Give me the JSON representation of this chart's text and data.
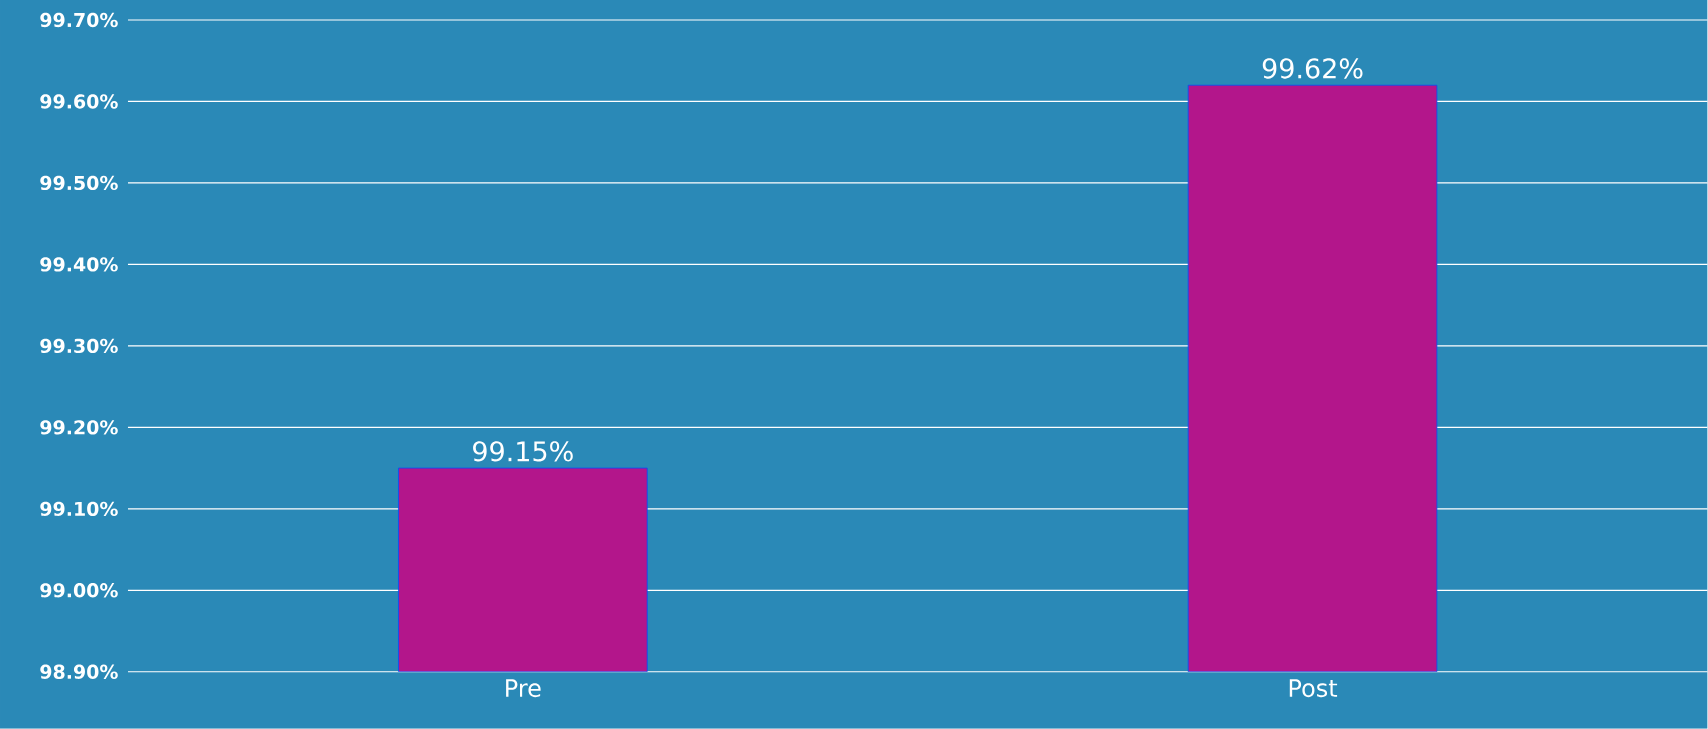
{
  "chart_data": {
    "type": "bar",
    "categories": [
      "Pre",
      "Post"
    ],
    "values": [
      99.15,
      99.62
    ],
    "value_labels": [
      "99.15%",
      "99.62%"
    ],
    "color": "#b3168b",
    "ylim": [
      98.9,
      99.7
    ],
    "yticks": [
      {
        "value": 98.9,
        "label": "98.90%"
      },
      {
        "value": 99.0,
        "label": "99.00%"
      },
      {
        "value": 99.1,
        "label": "99.10%"
      },
      {
        "value": 99.2,
        "label": "99.20%"
      },
      {
        "value": 99.3,
        "label": "99.30%"
      },
      {
        "value": 99.4,
        "label": "99.40%"
      },
      {
        "value": 99.5,
        "label": "99.50%"
      },
      {
        "value": 99.6,
        "label": "99.60%"
      },
      {
        "value": 99.7,
        "label": "99.70%"
      }
    ],
    "grid": "y"
  }
}
